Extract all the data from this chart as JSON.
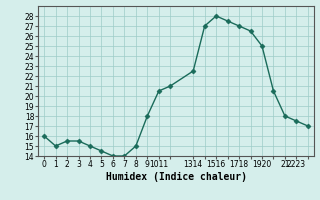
{
  "x": [
    0,
    1,
    2,
    3,
    4,
    5,
    6,
    7,
    8,
    9,
    10,
    11,
    13,
    14,
    15,
    16,
    17,
    18,
    19,
    20,
    21,
    22,
    23
  ],
  "y": [
    16,
    15,
    15.5,
    15.5,
    15,
    14.5,
    14,
    14,
    15,
    18,
    20.5,
    21,
    22.5,
    27,
    28,
    27.5,
    27,
    26.5,
    25,
    20.5,
    18,
    17.5,
    17
  ],
  "line_color": "#1a6b5a",
  "marker": "D",
  "marker_size": 2.5,
  "bg_color": "#d5eeeb",
  "grid_color": "#9eccc8",
  "xlabel": "Humidex (Indice chaleur)",
  "xlabel_fontsize": 7,
  "ylim": [
    14,
    29
  ],
  "xlim": [
    -0.5,
    23.5
  ],
  "yticks": [
    14,
    15,
    16,
    17,
    18,
    19,
    20,
    21,
    22,
    23,
    24,
    25,
    26,
    27,
    28
  ],
  "xtick_positions": [
    0,
    1,
    2,
    3,
    4,
    5,
    6,
    7,
    8,
    9,
    10,
    11,
    13,
    14,
    15,
    16,
    17,
    18,
    19,
    20,
    21,
    22,
    23
  ],
  "xtick_labels": [
    "0",
    "1",
    "2",
    "3",
    "4",
    "5",
    "6",
    "7",
    "8",
    "9",
    "1011",
    "",
    "1314",
    "",
    "1516",
    "",
    "1718",
    "",
    "1920",
    "",
    "21",
    "2223",
    ""
  ],
  "tick_fontsize": 5.5,
  "linewidth": 1.0
}
